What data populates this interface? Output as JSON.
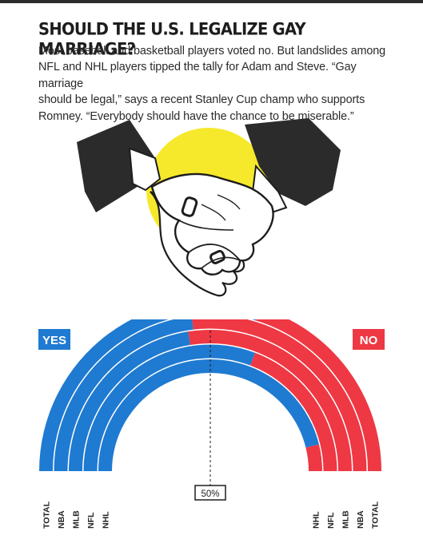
{
  "article": {
    "title": "SHOULD THE U.S. LEGALIZE GAY MARRIAGE?",
    "dek": [
      "Most baseball and basketball players voted no. But landslides among",
      "NFL and NHL players tipped the tally for Adam and Steve. “Gay marriage",
      "should be legal,” says a recent Stanley Cup champ who supports",
      "Romney. “Everybody should have the chance to be miserable.”"
    ]
  },
  "colors": {
    "yes": "#1f7ad1",
    "no": "#ee3843",
    "illustration_circle": "#f6e92b",
    "sleeve": "#2b2b2b"
  },
  "chart_data": {
    "type": "semicircle-bar",
    "yes_label": "YES",
    "no_label": "NO",
    "midpoint_label": "50%",
    "series": [
      {
        "name": "TOTAL",
        "yes": 59.3,
        "no": 40.7,
        "yes_label": "59.3%",
        "no_label": "40.7%"
      },
      {
        "name": "NBA",
        "yes": 46.2,
        "no": 53.8,
        "yes_label": "46.2%",
        "no_label": "53.8%"
      },
      {
        "name": "MLB",
        "yes": 45.0,
        "no": 55.0,
        "yes_label": "45.0%",
        "no_label": "55.0%"
      },
      {
        "name": "NFL",
        "yes": 61.5,
        "no": 38.5,
        "yes_label": "61.5%",
        "no_label": "38.5%"
      },
      {
        "name": "NHL",
        "yes": 92.3,
        "no": 7.7,
        "yes_label": "92.3%",
        "no_label": "7.7%"
      }
    ]
  }
}
